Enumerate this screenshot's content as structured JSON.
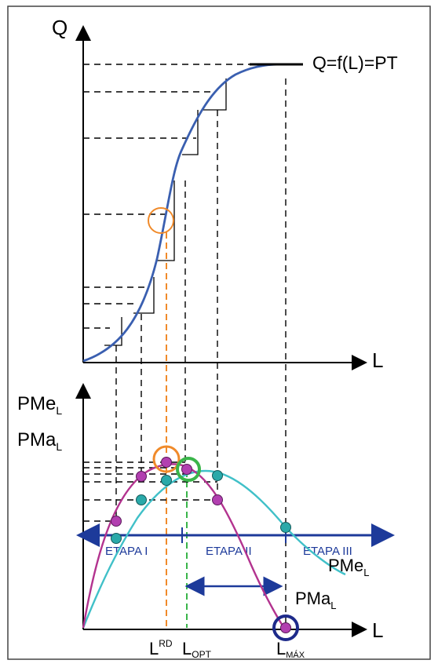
{
  "top_chart": {
    "y_axis_label": "Q",
    "x_axis_label": "L",
    "curve_label": "Q=f(L)=PT"
  },
  "bottom_chart": {
    "y_axis_label_pme": "PMe",
    "y_axis_label_pme_sub": "L",
    "y_axis_label_pma": "PMa",
    "y_axis_label_pma_sub": "L",
    "x_axis_label": "L",
    "stage_1": "ETAPA I",
    "stage_2": "ETAPA II",
    "stage_3": "ETAPA III",
    "curve_pme_label": "PMe",
    "curve_pme_sub": "L",
    "curve_pma_label": "PMa",
    "curve_pma_sub": "L",
    "mark_l_rd": "L",
    "mark_l_rd_sup": "RD",
    "mark_l_opt": "L",
    "mark_l_opt_sub": "OPT",
    "mark_l_max": "L",
    "mark_l_max_sub": "MÁX"
  },
  "colors": {
    "total_product_curve": "#3a5fb0",
    "average_product_curve": "#40c0c8",
    "marginal_product_curve": "#b3338f",
    "stage_arrow": "#1d3a9a",
    "point_magenta": "#b23fb0",
    "point_teal": "#2aa9a9",
    "highlight_orange": "#f08a2a",
    "highlight_green": "#3ab54a",
    "highlight_navy": "#1d2a8a"
  }
}
